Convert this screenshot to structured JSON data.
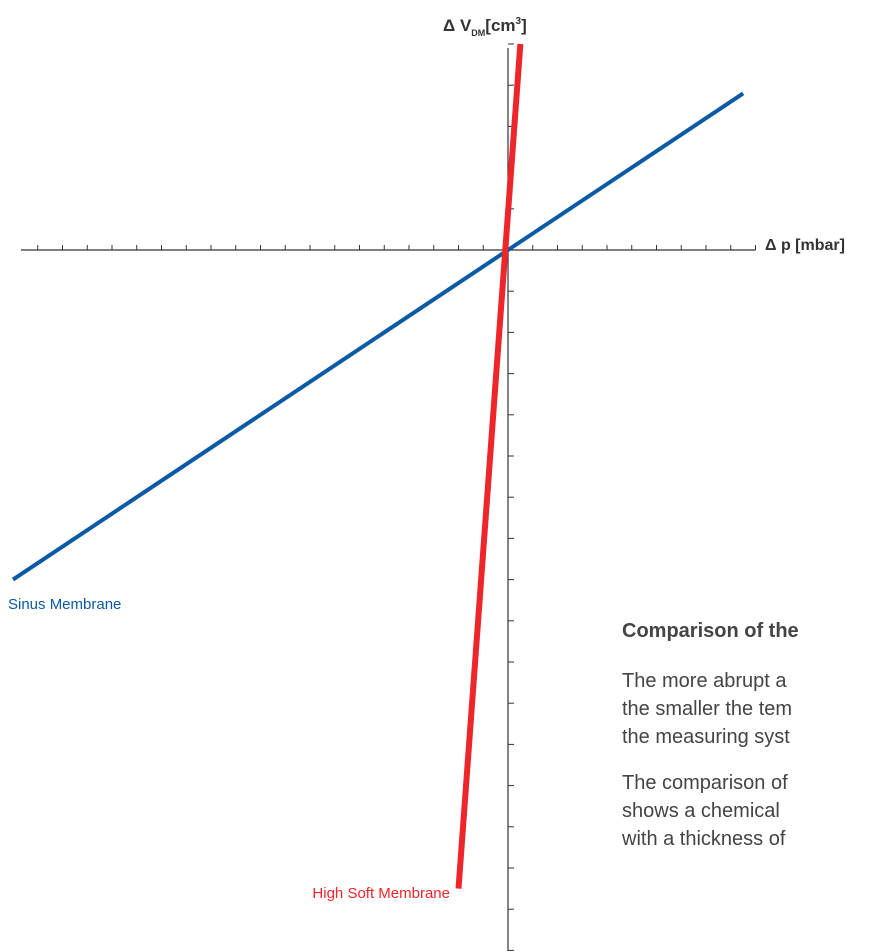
{
  "colors": {
    "axis": "#333333",
    "sinus": "#0a5aa6",
    "high_soft": "#ee2529",
    "text": "#444444"
  },
  "chart_data": {
    "type": "line",
    "title": "",
    "xlabel": "Δ p [mbar]",
    "ylabel": {
      "main": "Δ V",
      "sub": "DM",
      "unit": "[cm",
      "sup": "3",
      "close": "]"
    },
    "xlim": [
      -20,
      10
    ],
    "ylim": [
      -18,
      5
    ],
    "grid": false,
    "legend": "inline labels at line ends",
    "series": [
      {
        "name": "Sinus Membrane",
        "color": "#0a5aa6",
        "x": [
          -20,
          9.5
        ],
        "y": [
          -8,
          3.8
        ]
      },
      {
        "name": "High Soft Membrane",
        "color": "#ee2529",
        "x": [
          -2.0,
          0.5
        ],
        "y": [
          -15.5,
          5
        ]
      }
    ]
  },
  "text_block": {
    "heading": "Comparison of the",
    "para1": [
      "The more abrupt a",
      "the smaller the tem",
      "the measuring syst"
    ],
    "para2": [
      "The comparison of",
      "shows a chemical",
      "with a thickness of"
    ]
  }
}
